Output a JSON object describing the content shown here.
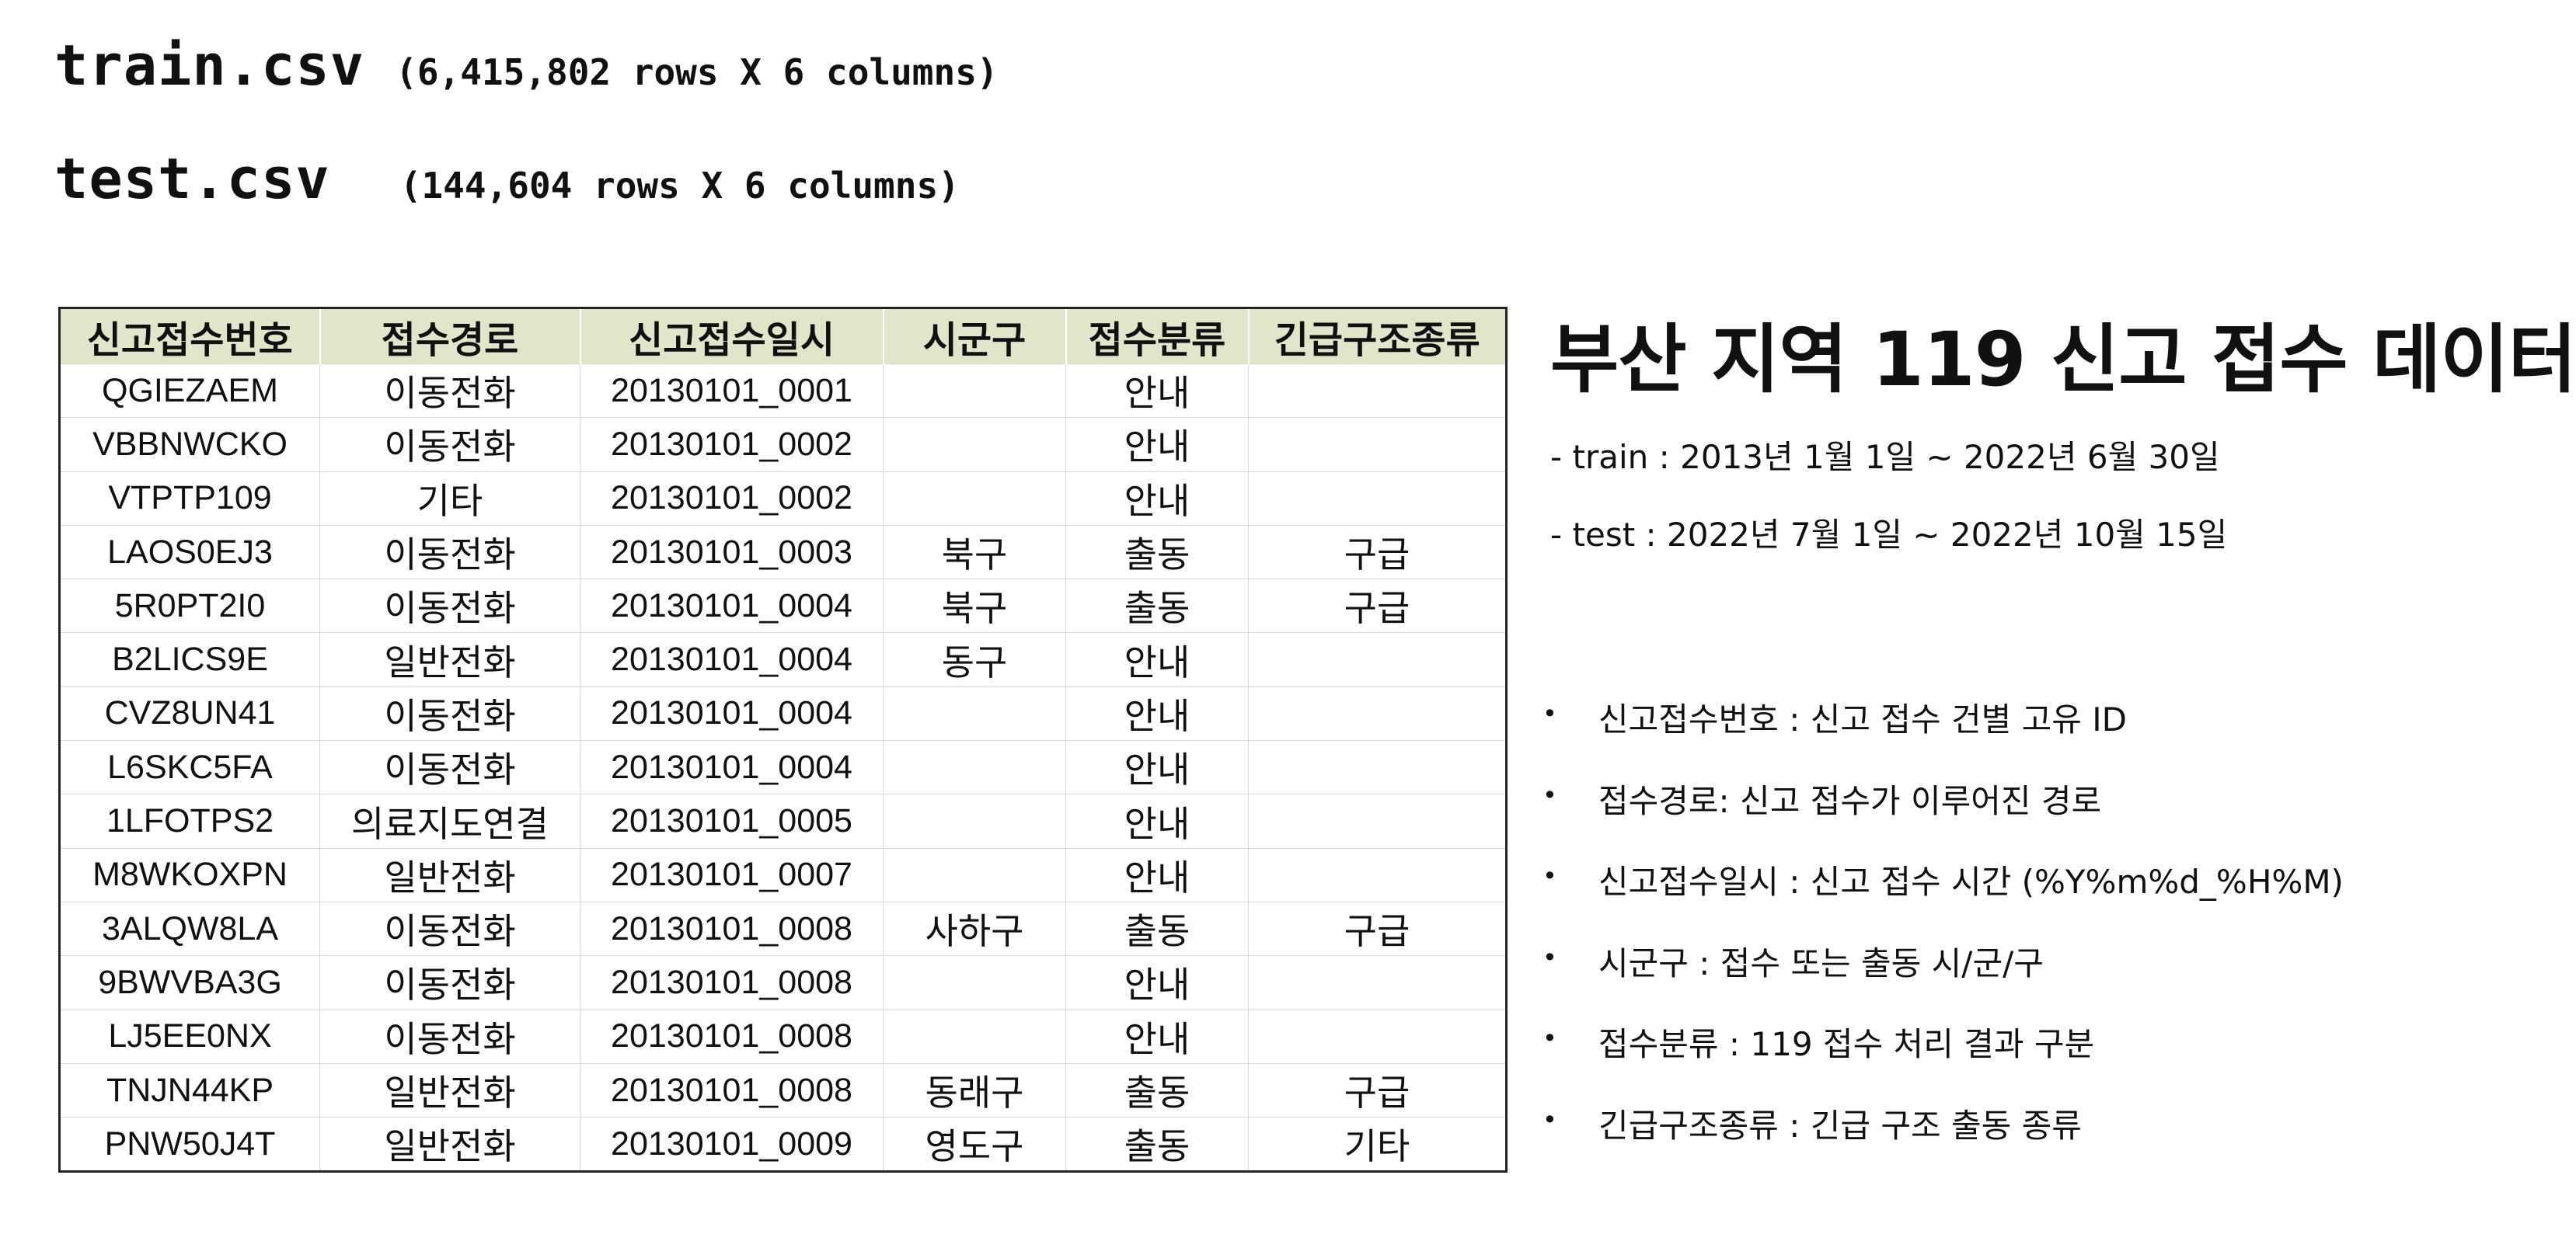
{
  "files": {
    "train_name": "train.csv",
    "train_size": "(6,415,802 rows X 6 columns)",
    "test_name": "test.csv",
    "test_size": "(144,604 rows X 6 columns)"
  },
  "table": {
    "headers": [
      "신고접수번호",
      "접수경로",
      "신고접수일시",
      "시군구",
      "접수분류",
      "긴급구조종류"
    ],
    "rows": [
      [
        "QGIEZAEM",
        "이동전화",
        "20130101_0001",
        "",
        "안내",
        ""
      ],
      [
        "VBBNWCKO",
        "이동전화",
        "20130101_0002",
        "",
        "안내",
        ""
      ],
      [
        "VTPTP109",
        "기타",
        "20130101_0002",
        "",
        "안내",
        ""
      ],
      [
        "LAOS0EJ3",
        "이동전화",
        "20130101_0003",
        "북구",
        "출동",
        "구급"
      ],
      [
        "5R0PT2I0",
        "이동전화",
        "20130101_0004",
        "북구",
        "출동",
        "구급"
      ],
      [
        "B2LICS9E",
        "일반전화",
        "20130101_0004",
        "동구",
        "안내",
        ""
      ],
      [
        "CVZ8UN41",
        "이동전화",
        "20130101_0004",
        "",
        "안내",
        ""
      ],
      [
        "L6SKC5FA",
        "이동전화",
        "20130101_0004",
        "",
        "안내",
        ""
      ],
      [
        "1LFOTPS2",
        "의료지도연결",
        "20130101_0005",
        "",
        "안내",
        ""
      ],
      [
        "M8WKOXPN",
        "일반전화",
        "20130101_0007",
        "",
        "안내",
        ""
      ],
      [
        "3ALQW8LA",
        "이동전화",
        "20130101_0008",
        "사하구",
        "출동",
        "구급"
      ],
      [
        "9BWVBA3G",
        "이동전화",
        "20130101_0008",
        "",
        "안내",
        ""
      ],
      [
        "LJ5EE0NX",
        "이동전화",
        "20130101_0008",
        "",
        "안내",
        ""
      ],
      [
        "TNJN44KP",
        "일반전화",
        "20130101_0008",
        "동래구",
        "출동",
        "구급"
      ],
      [
        "PNW50J4T",
        "일반전화",
        "20130101_0009",
        "영도구",
        "출동",
        "기타"
      ]
    ]
  },
  "panel": {
    "title": "부산 지역 119 신고 접수 데이터",
    "train_range": "- train : 2013년 1월 1일 ~ 2022년 6월  30일",
    "test_range": "- test : 2022년 7월 1일 ~ 2022년 10월 15일",
    "bullet": "•",
    "columns": [
      "신고접수번호 : 신고 접수 건별 고유 ID",
      "접수경로: 신고 접수가 이루어진 경로",
      "신고접수일시 : 신고 접수 시간 (%Y%m%d_%H%M)",
      "시군구 : 접수 또는 출동 시/군/구",
      "접수분류 : 119 접수 처리 결과 구분",
      "긴급구조종류 : 긴급 구조 출동 종류"
    ]
  },
  "colors": {
    "header_bg": "#dfe6c9",
    "border": "#222222"
  }
}
